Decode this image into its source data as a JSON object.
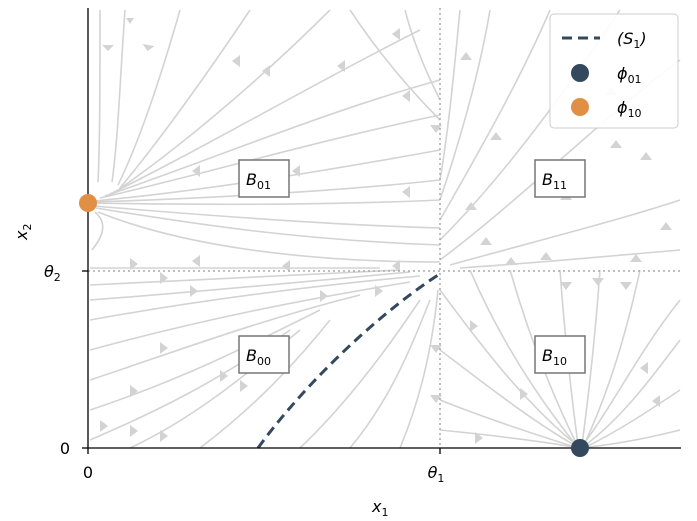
{
  "axes": {
    "x_label": "x",
    "x_label_sub": "1",
    "y_label": "x",
    "y_label_sub": "2",
    "x_ticks": [
      {
        "main": "0",
        "sub": ""
      },
      {
        "main": "θ",
        "sub": "1"
      }
    ],
    "y_ticks": [
      {
        "main": "0",
        "sub": ""
      },
      {
        "main": "θ",
        "sub": "2"
      }
    ]
  },
  "regions": [
    {
      "id": "B01",
      "main": "B",
      "sub": "01"
    },
    {
      "id": "B11",
      "main": "B",
      "sub": "11"
    },
    {
      "id": "B00",
      "main": "B",
      "sub": "00"
    },
    {
      "id": "B10",
      "main": "B",
      "sub": "10"
    }
  ],
  "legend": {
    "separatrix": {
      "main": "(S",
      "sub": "1",
      "tail": ")"
    },
    "fixed_point_01": {
      "main": "ϕ",
      "sub": "01"
    },
    "fixed_point_10": {
      "main": "ϕ",
      "sub": "10"
    }
  },
  "colors": {
    "stream": "#d3d3d3",
    "separatrix": "#34495e",
    "phi01": "#34495e",
    "phi10": "#e08f45",
    "threshold": "#aaaaaa"
  }
}
